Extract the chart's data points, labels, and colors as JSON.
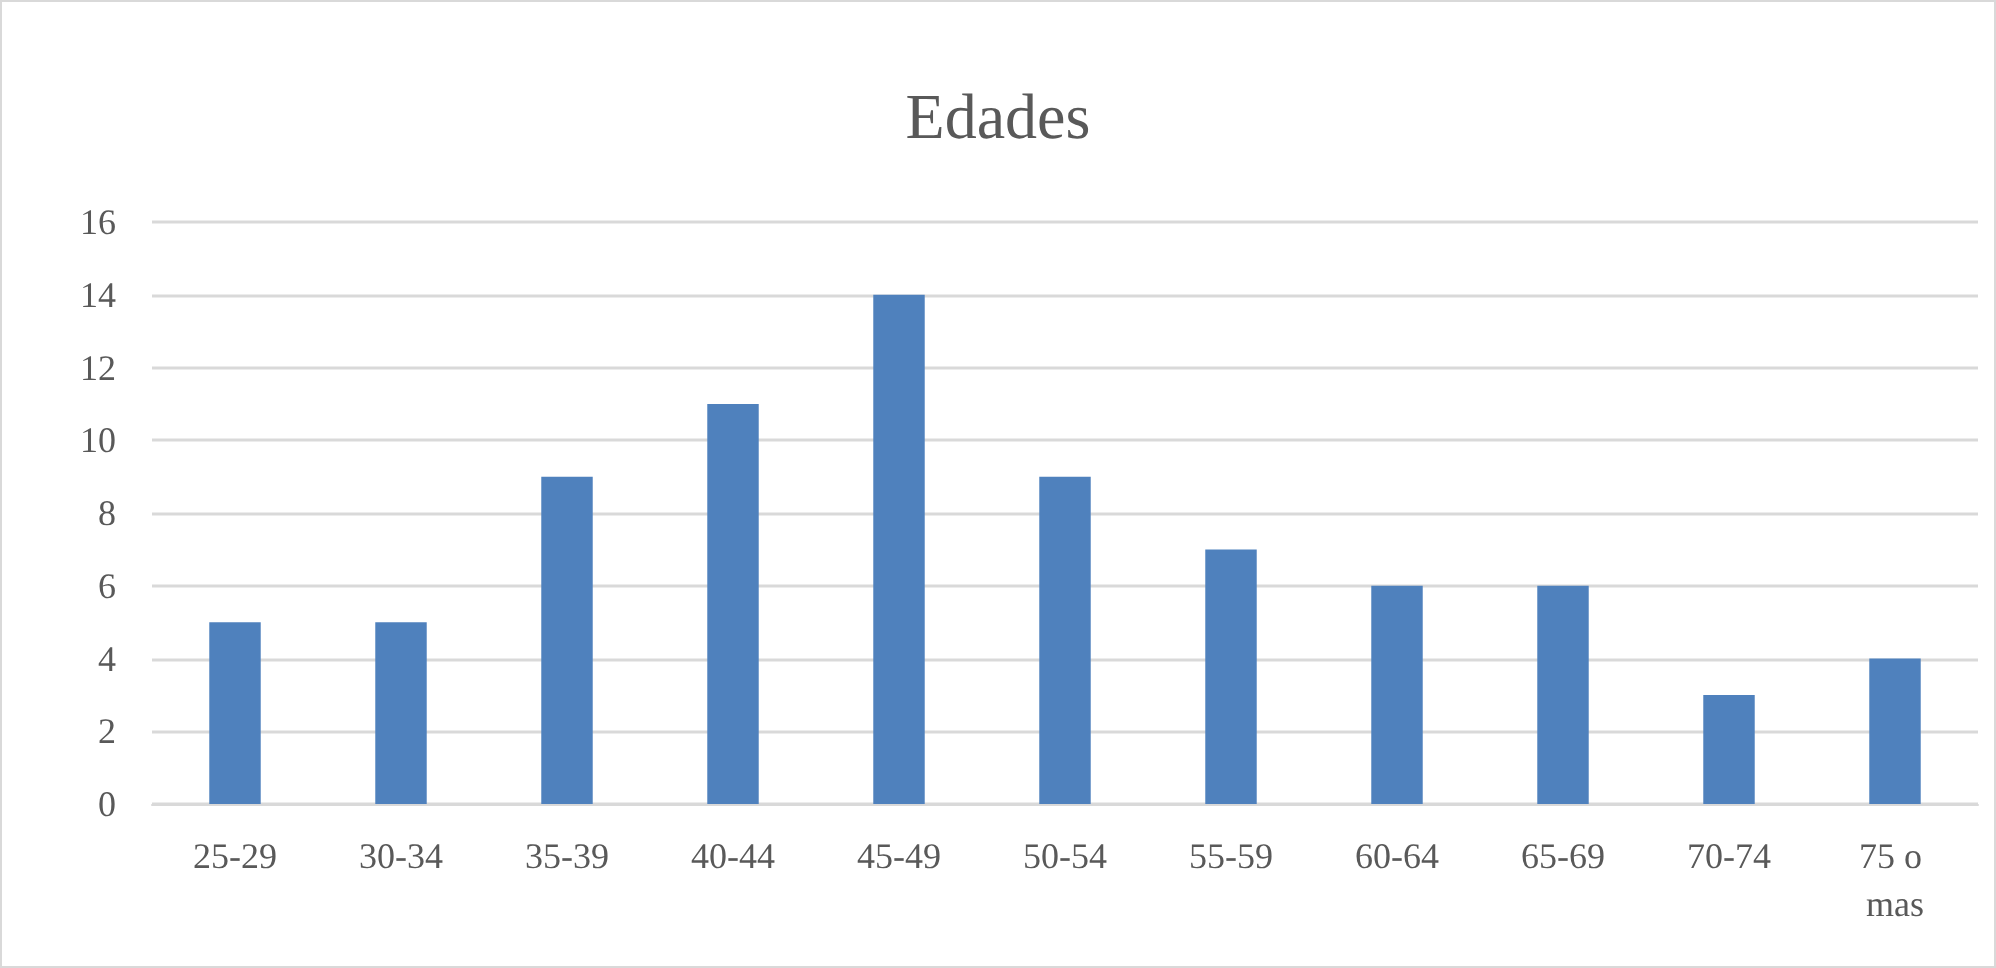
{
  "chart_data": {
    "type": "bar",
    "title": "Edades",
    "categories": [
      "25-29",
      "30-34",
      "35-39",
      "40-44",
      "45-49",
      "50-54",
      "55-59",
      "60-64",
      "65-69",
      "70-74",
      "75 o mas"
    ],
    "values": [
      5,
      5,
      9,
      11,
      14,
      9,
      7,
      6,
      6,
      3,
      4
    ],
    "color": "#4f81bd",
    "ylim": [
      0,
      16
    ],
    "yticks": [
      0,
      2,
      4,
      6,
      8,
      10,
      12,
      14,
      16
    ],
    "grid": "y"
  }
}
